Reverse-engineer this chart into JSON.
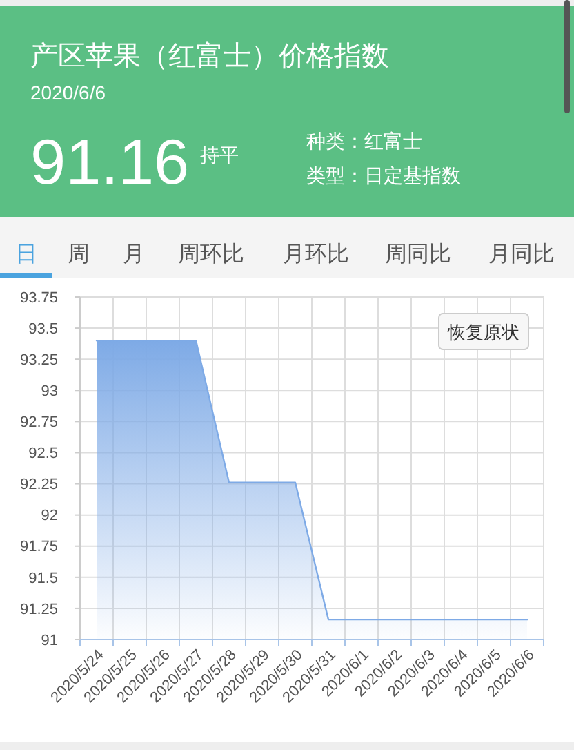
{
  "chart_data": {
    "type": "area",
    "title": "产区苹果（红富士）价格指数",
    "subtitle": "2020/6/6",
    "annotations": [
      "91.16",
      "持平",
      "种类：红富士",
      "类型：日定基指数",
      "日",
      "周",
      "月",
      "周环比",
      "月环比",
      "周同比",
      "月同比",
      "恢复原状"
    ],
    "categories": [
      "2020/5/24",
      "2020/5/25",
      "2020/5/26",
      "2020/5/27",
      "2020/5/28",
      "2020/5/29",
      "2020/5/30",
      "2020/5/31",
      "2020/6/1",
      "2020/6/2",
      "2020/6/3",
      "2020/6/4",
      "2020/6/5",
      "2020/6/6"
    ],
    "values": [
      93.4,
      93.4,
      93.4,
      93.4,
      92.26,
      92.26,
      92.26,
      91.16,
      91.16,
      91.16,
      91.16,
      91.16,
      91.16,
      91.16
    ],
    "color": "#7eaae6",
    "ylim": [
      91,
      93.75
    ],
    "yticks": [
      91,
      91.25,
      91.5,
      91.75,
      92,
      92.25,
      92.5,
      92.75,
      93,
      93.25,
      93.5,
      93.75
    ],
    "grid": true
  }
}
